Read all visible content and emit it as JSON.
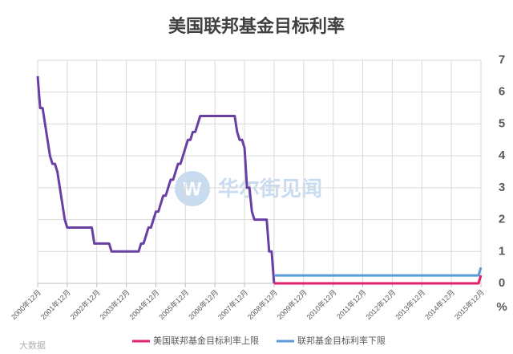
{
  "chart_data": {
    "type": "line",
    "title": "美国联邦基金目标利率",
    "y_unit": "%",
    "ylim": [
      0,
      7
    ],
    "yticks": [
      0,
      1,
      2,
      3,
      4,
      5,
      6,
      7
    ],
    "grid": true,
    "y_axis_side": "right",
    "xlim": [
      "2000-12",
      "2015-12"
    ],
    "xticks": [
      {
        "value": "2000-12",
        "label": "2000年12月"
      },
      {
        "value": "2001-12",
        "label": "2001年12月"
      },
      {
        "value": "2002-12",
        "label": "2002年12月"
      },
      {
        "value": "2003-12",
        "label": "2003年12月"
      },
      {
        "value": "2004-12",
        "label": "2004年12月"
      },
      {
        "value": "2005-12",
        "label": "2005年12月"
      },
      {
        "value": "2006-12",
        "label": "2006年12月"
      },
      {
        "value": "2007-12",
        "label": "2007年12月"
      },
      {
        "value": "2008-12",
        "label": "2008年12月"
      },
      {
        "value": "2009-12",
        "label": "2009年12月"
      },
      {
        "value": "2010-12",
        "label": "2010年12月"
      },
      {
        "value": "2011-12",
        "label": "2011年12月"
      },
      {
        "value": "2012-12",
        "label": "2012年12月"
      },
      {
        "value": "2013-12",
        "label": "2013年12月"
      },
      {
        "value": "2014-12",
        "label": "2014年12月"
      },
      {
        "value": "2015-12",
        "label": "2015年12月"
      }
    ],
    "legend": "bottom",
    "watermarks": [
      "华尔街见闻",
      "大数据"
    ],
    "series": [
      {
        "color": "#6a3fa3",
        "x": [
          "2000-12",
          "2001-01",
          "2001-02",
          "2001-03",
          "2001-04",
          "2001-05",
          "2001-06",
          "2001-07",
          "2001-08",
          "2001-09",
          "2001-10",
          "2001-11",
          "2001-12",
          "2002-10",
          "2002-11",
          "2003-05",
          "2003-06",
          "2004-05",
          "2004-06",
          "2004-07",
          "2004-08",
          "2004-09",
          "2004-10",
          "2004-11",
          "2004-12",
          "2005-01",
          "2005-02",
          "2005-03",
          "2005-04",
          "2005-05",
          "2005-06",
          "2005-07",
          "2005-08",
          "2005-09",
          "2005-10",
          "2005-11",
          "2005-12",
          "2006-01",
          "2006-02",
          "2006-03",
          "2006-04",
          "2006-05",
          "2006-06",
          "2007-08",
          "2007-09",
          "2007-10",
          "2007-11",
          "2007-12",
          "2008-01",
          "2008-02",
          "2008-03",
          "2008-04",
          "2008-09",
          "2008-10",
          "2008-11",
          "2008-12"
        ],
        "values": [
          6.5,
          5.5,
          5.5,
          5.0,
          4.5,
          4.0,
          3.75,
          3.75,
          3.5,
          3.0,
          2.5,
          2.0,
          1.75,
          1.75,
          1.25,
          1.25,
          1.0,
          1.0,
          1.25,
          1.25,
          1.5,
          1.75,
          1.75,
          2.0,
          2.25,
          2.25,
          2.5,
          2.75,
          2.75,
          3.0,
          3.25,
          3.25,
          3.5,
          3.75,
          3.75,
          4.0,
          4.25,
          4.5,
          4.5,
          4.75,
          4.75,
          5.0,
          5.25,
          5.25,
          4.75,
          4.5,
          4.5,
          4.25,
          3.0,
          3.0,
          2.25,
          2.0,
          2.0,
          1.0,
          1.0,
          0
        ]
      },
      {
        "name": "美国联邦基金目标利率上限",
        "color": "#e0206a",
        "x": [
          "2008-12",
          "2015-11",
          "2015-12"
        ],
        "values": [
          0,
          0,
          0.25
        ]
      },
      {
        "name": "联邦基金目标利率下限",
        "color": "#5b9bd5",
        "x": [
          "2008-12",
          "2015-11",
          "2015-12"
        ],
        "values": [
          0.25,
          0.25,
          0.5
        ]
      }
    ]
  }
}
